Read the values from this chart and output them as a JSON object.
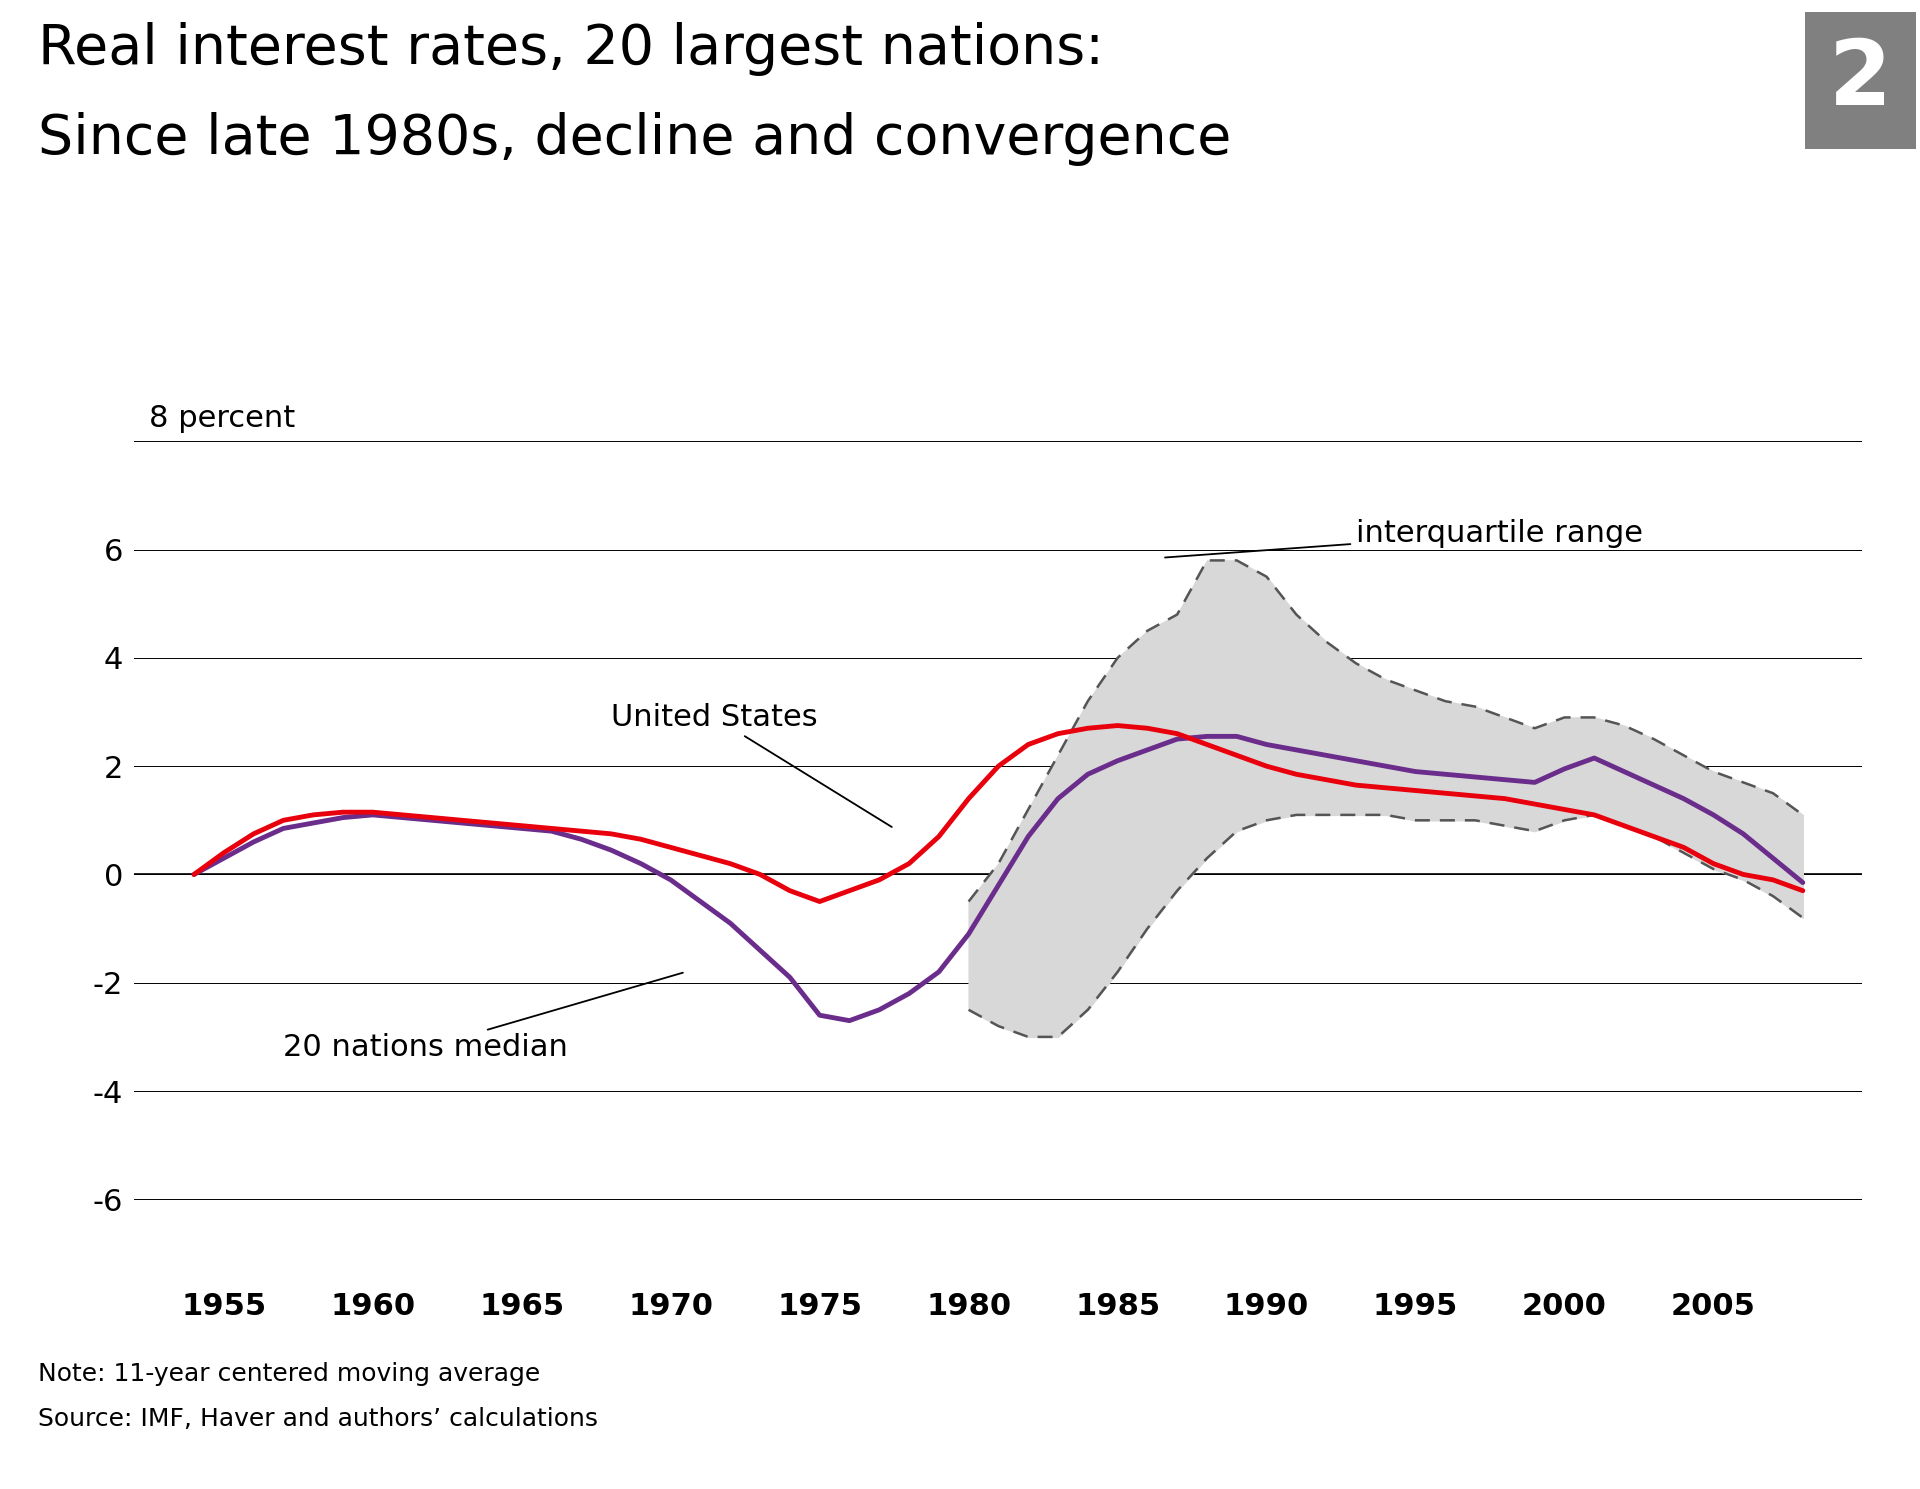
{
  "title_line1": "Real interest rates, 20 largest nations:",
  "title_line2": "Since late 1980s, decline and convergence",
  "badge_number": "2",
  "ylabel": "8 percent",
  "note": "Note: 11-year centered moving average",
  "source": "Source: IMF, Haver and authors’ calculations",
  "yticks": [
    6,
    4,
    2,
    0,
    -2,
    -4,
    -6
  ],
  "ylim": [
    -7.5,
    9.0
  ],
  "xlim": [
    1952,
    2010
  ],
  "xticks": [
    1955,
    1960,
    1965,
    1970,
    1975,
    1980,
    1985,
    1990,
    1995,
    2000,
    2005
  ],
  "us_color": "#e8000d",
  "median_color": "#6b2d8b",
  "iqr_fill_color": "#d8d8d8",
  "iqr_line_color": "#555555",
  "annotation_us": "United States",
  "annotation_median": "20 nations median",
  "annotation_iqr": "interquartile range",
  "years": [
    1954,
    1955,
    1956,
    1957,
    1958,
    1959,
    1960,
    1961,
    1962,
    1963,
    1964,
    1965,
    1966,
    1967,
    1968,
    1969,
    1970,
    1971,
    1972,
    1973,
    1974,
    1975,
    1976,
    1977,
    1978,
    1979,
    1980,
    1981,
    1982,
    1983,
    1984,
    1985,
    1986,
    1987,
    1988,
    1989,
    1990,
    1991,
    1992,
    1993,
    1994,
    1995,
    1996,
    1997,
    1998,
    1999,
    2000,
    2001,
    2002,
    2003,
    2004,
    2005,
    2006,
    2007,
    2008
  ],
  "us_values": [
    0.0,
    0.4,
    0.75,
    1.0,
    1.1,
    1.15,
    1.15,
    1.1,
    1.05,
    1.0,
    0.95,
    0.9,
    0.85,
    0.8,
    0.75,
    0.65,
    0.5,
    0.35,
    0.2,
    0.0,
    -0.3,
    -0.5,
    -0.3,
    -0.1,
    0.2,
    0.7,
    1.4,
    2.0,
    2.4,
    2.6,
    2.7,
    2.75,
    2.7,
    2.6,
    2.4,
    2.2,
    2.0,
    1.85,
    1.75,
    1.65,
    1.6,
    1.55,
    1.5,
    1.45,
    1.4,
    1.3,
    1.2,
    1.1,
    0.9,
    0.7,
    0.5,
    0.2,
    0.0,
    -0.1,
    -0.3
  ],
  "median_values": [
    0.0,
    0.3,
    0.6,
    0.85,
    0.95,
    1.05,
    1.1,
    1.05,
    1.0,
    0.95,
    0.9,
    0.85,
    0.8,
    0.65,
    0.45,
    0.2,
    -0.1,
    -0.5,
    -0.9,
    -1.4,
    -1.9,
    -2.6,
    -2.7,
    -2.5,
    -2.2,
    -1.8,
    -1.1,
    -0.2,
    0.7,
    1.4,
    1.85,
    2.1,
    2.3,
    2.5,
    2.55,
    2.55,
    2.4,
    2.3,
    2.2,
    2.1,
    2.0,
    1.9,
    1.85,
    1.8,
    1.75,
    1.7,
    1.95,
    2.15,
    1.9,
    1.65,
    1.4,
    1.1,
    0.75,
    0.3,
    -0.15
  ],
  "iqr_upper": [
    null,
    null,
    null,
    null,
    null,
    null,
    null,
    null,
    null,
    null,
    null,
    null,
    null,
    null,
    null,
    null,
    null,
    null,
    null,
    null,
    null,
    null,
    null,
    null,
    null,
    null,
    -0.5,
    0.2,
    1.2,
    2.2,
    3.2,
    4.0,
    4.5,
    4.8,
    5.8,
    5.8,
    5.5,
    4.8,
    4.3,
    3.9,
    3.6,
    3.4,
    3.2,
    3.1,
    2.9,
    2.7,
    2.9,
    2.9,
    2.75,
    2.5,
    2.2,
    1.9,
    1.7,
    1.5,
    1.1
  ],
  "iqr_lower": [
    null,
    null,
    null,
    null,
    null,
    null,
    null,
    null,
    null,
    null,
    null,
    null,
    null,
    null,
    null,
    null,
    null,
    null,
    null,
    null,
    null,
    null,
    null,
    null,
    null,
    null,
    -2.5,
    -2.8,
    -3.0,
    -3.0,
    -2.5,
    -1.8,
    -1.0,
    -0.3,
    0.3,
    0.8,
    1.0,
    1.1,
    1.1,
    1.1,
    1.1,
    1.0,
    1.0,
    1.0,
    0.9,
    0.8,
    1.0,
    1.1,
    0.9,
    0.7,
    0.4,
    0.1,
    -0.1,
    -0.4,
    -0.8
  ]
}
